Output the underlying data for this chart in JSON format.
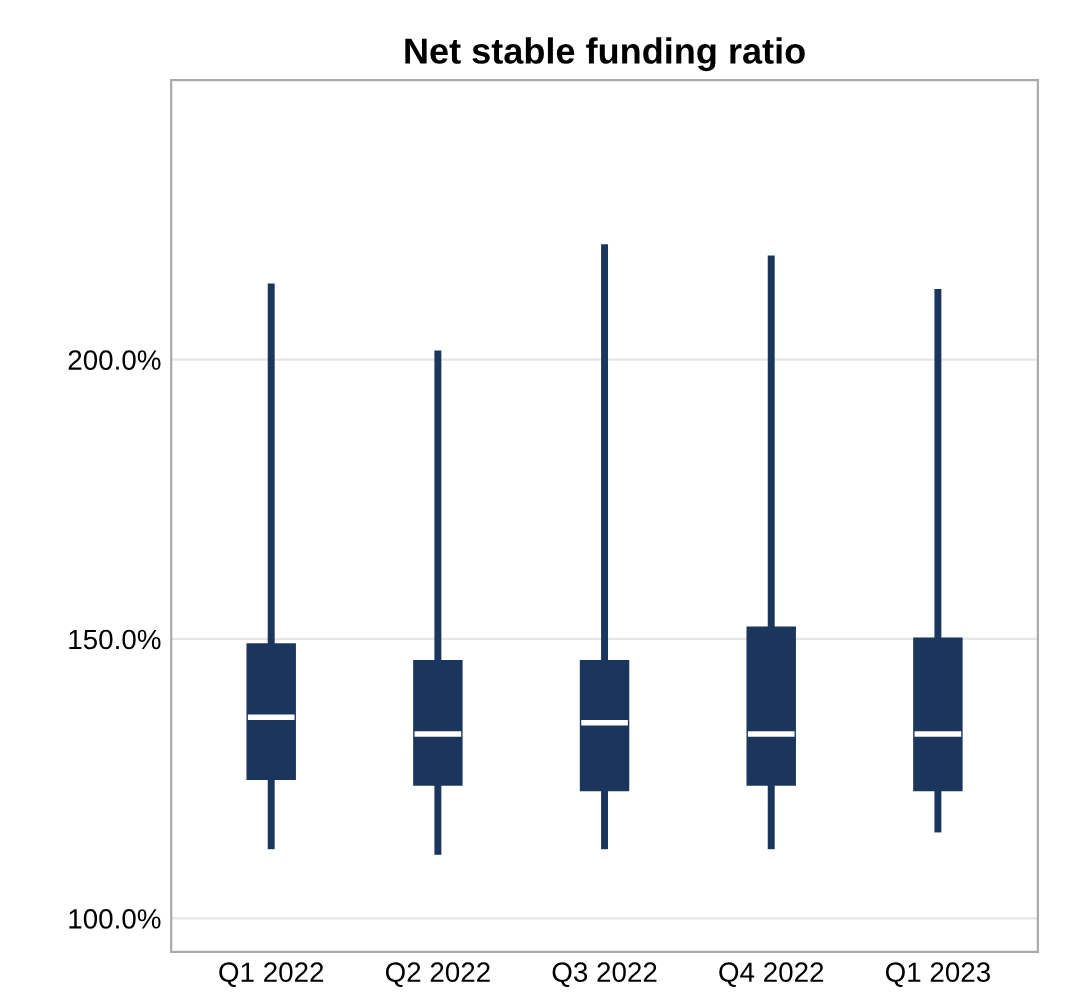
{
  "chart_data": {
    "type": "box",
    "title": "Net stable funding ratio",
    "categories": [
      "Q1 2022",
      "Q2 2022",
      "Q3 2022",
      "Q4 2022",
      "Q1 2023"
    ],
    "series": [
      {
        "color": "#1b365d",
        "boxes": [
          {
            "low": 113,
            "q1": 125,
            "median": 136,
            "q3": 149,
            "high": 213
          },
          {
            "low": 112,
            "q1": 124,
            "median": 133,
            "q3": 146,
            "high": 201
          },
          {
            "low": 113,
            "q1": 123,
            "median": 135,
            "q3": 146,
            "high": 220
          },
          {
            "low": 113,
            "q1": 124,
            "median": 133,
            "q3": 152,
            "high": 218
          },
          {
            "low": 116,
            "q1": 123,
            "median": 133,
            "q3": 150,
            "high": 212
          }
        ]
      }
    ],
    "ylim": [
      94,
      250
    ],
    "yticks": [
      {
        "value": 100,
        "label": "100.0%"
      },
      {
        "value": 150,
        "label": "150.0%"
      },
      {
        "value": 200,
        "label": "200.0%"
      }
    ],
    "grid": "y",
    "legend": false
  }
}
